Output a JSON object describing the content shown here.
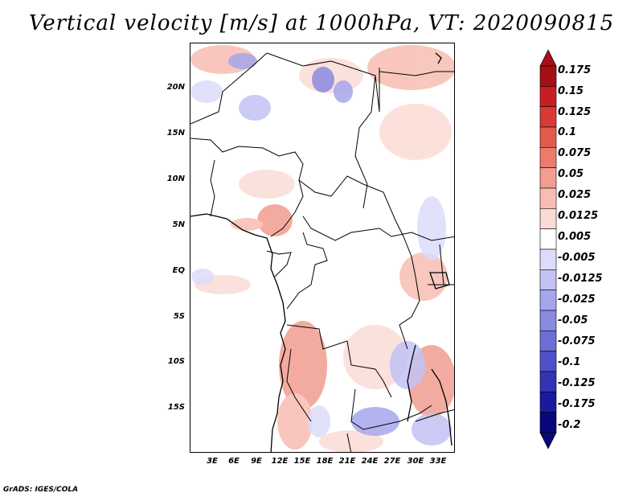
{
  "title": "Vertical velocity [m/s] at 1000hPa, VT: 2020090815",
  "credit": "GrADS: IGES/COLA",
  "lat_labels": [
    "20N",
    "15N",
    "10N",
    "5N",
    "EQ",
    "5S",
    "10S",
    "15S"
  ],
  "lon_labels": [
    "3E",
    "6E",
    "9E",
    "12E",
    "15E",
    "18E",
    "21E",
    "24E",
    "27E",
    "30E",
    "33E"
  ],
  "colorbar": {
    "labels": [
      "0.175",
      "0.15",
      "0.125",
      "0.1",
      "0.075",
      "0.05",
      "0.025",
      "0.0125",
      "0.005",
      "-0.005",
      "-0.0125",
      "-0.025",
      "-0.05",
      "-0.075",
      "-0.1",
      "-0.125",
      "-0.175",
      "-0.2"
    ],
    "colors": [
      "#a50f15",
      "#c81e22",
      "#d93a33",
      "#e25a4c",
      "#ea7b6d",
      "#f19d90",
      "#f7bdb2",
      "#fbdcd5",
      "#ffffff",
      "#dcdcfa",
      "#c2c2f4",
      "#a6a6ec",
      "#8a8ae2",
      "#6e6ed8",
      "#5050c8",
      "#3333b5",
      "#1a1aa0",
      "#08087a"
    ]
  }
}
